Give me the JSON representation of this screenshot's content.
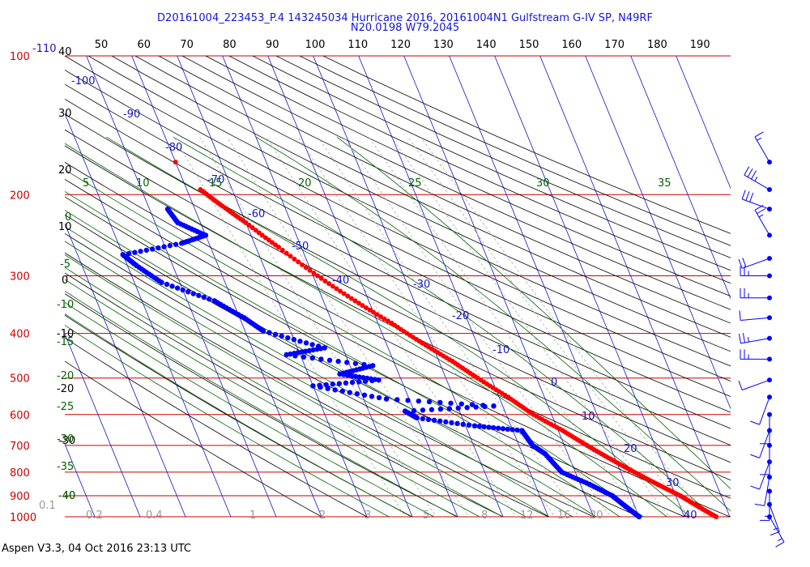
{
  "header": {
    "line1": "D20161004_223453_P.4 143245034 Hurricane 2016, 20161004N1 Gulfstream G-IV SP, N49RF",
    "line2": "N20.0198 W79.2045"
  },
  "footer": {
    "text": "Aspen V3.3, 04 Oct 2016  23:13 UTC"
  },
  "colors": {
    "temperature": "#ff0000",
    "dewpoint": "#0000ff",
    "isobar": "#cc0000",
    "isotherm": "#1414c8",
    "dry_adiabat": "#000000",
    "moist_adiabat": "#006400",
    "mixing_ratio": "#a8a8a8",
    "wind": "#0000ff"
  },
  "chart_data": {
    "type": "skew-t",
    "pressure_levels": [
      100,
      200,
      300,
      400,
      500,
      600,
      700,
      800,
      900,
      1000
    ],
    "pressure_labels": [
      "100",
      "200",
      "300",
      "400",
      "500",
      "600",
      "700",
      "800",
      "900",
      "1000"
    ],
    "top_axis_labels": [
      "50",
      "60",
      "70",
      "80",
      "90",
      "100",
      "110",
      "120",
      "130",
      "140",
      "150",
      "160",
      "170",
      "180",
      "190"
    ],
    "isotherm_labels": [
      "-110",
      "-100",
      "-90",
      "-80",
      "-70",
      "-60",
      "-50",
      "-40",
      "-30",
      "-20",
      "-10",
      "0",
      "10",
      "20",
      "30",
      "40"
    ],
    "dry_adiabat_labels": [
      "40",
      "30",
      "20",
      "10",
      "0",
      "-10",
      "-20",
      "-30",
      "-40"
    ],
    "moist_adiabat_labels": [
      "5",
      "10",
      "15",
      "20",
      "25",
      "30",
      "35",
      "0",
      "-5",
      "-10",
      "-15",
      "-20",
      "-25",
      "-30",
      "-35",
      "-40"
    ],
    "mixing_ratio_labels": [
      "0.1",
      "0.2",
      "0.4",
      "1",
      "2",
      "3",
      "5",
      "8",
      "12",
      "16",
      "20"
    ],
    "temperature_profile": [
      {
        "p": 195,
        "t": -57
      },
      {
        "p": 210,
        "t": -54
      },
      {
        "p": 230,
        "t": -50
      },
      {
        "p": 260,
        "t": -45
      },
      {
        "p": 300,
        "t": -39
      },
      {
        "p": 340,
        "t": -33
      },
      {
        "p": 380,
        "t": -27
      },
      {
        "p": 420,
        "t": -22
      },
      {
        "p": 460,
        "t": -17
      },
      {
        "p": 500,
        "t": -13
      },
      {
        "p": 550,
        "t": -8
      },
      {
        "p": 600,
        "t": -4
      },
      {
        "p": 650,
        "t": 1
      },
      {
        "p": 700,
        "t": 5
      },
      {
        "p": 750,
        "t": 9
      },
      {
        "p": 800,
        "t": 13
      },
      {
        "p": 850,
        "t": 17
      },
      {
        "p": 900,
        "t": 21
      },
      {
        "p": 950,
        "t": 24
      },
      {
        "p": 1000,
        "t": 27
      }
    ],
    "temperature_isolated_point": {
      "p": 170,
      "t": -60
    },
    "dewpoint_profile": [
      {
        "p": 215,
        "t": -66
      },
      {
        "p": 230,
        "t": -65
      },
      {
        "p": 245,
        "t": -60
      },
      {
        "p": 255,
        "t": -66
      },
      {
        "p": 270,
        "t": -80
      },
      {
        "p": 285,
        "t": -78
      },
      {
        "p": 310,
        "t": -74
      },
      {
        "p": 340,
        "t": -64
      },
      {
        "p": 370,
        "t": -59
      },
      {
        "p": 395,
        "t": -56
      },
      {
        "p": 430,
        "t": -44
      },
      {
        "p": 445,
        "t": -53
      },
      {
        "p": 470,
        "t": -35
      },
      {
        "p": 490,
        "t": -43
      },
      {
        "p": 505,
        "t": -35
      },
      {
        "p": 520,
        "t": -50
      },
      {
        "p": 555,
        "t": -35
      },
      {
        "p": 575,
        "t": -12
      },
      {
        "p": 590,
        "t": -32
      },
      {
        "p": 610,
        "t": -30
      },
      {
        "p": 635,
        "t": -18
      },
      {
        "p": 650,
        "t": -8
      },
      {
        "p": 700,
        "t": -7
      },
      {
        "p": 730,
        "t": -5
      },
      {
        "p": 800,
        "t": -3
      },
      {
        "p": 850,
        "t": 2
      },
      {
        "p": 900,
        "t": 6
      },
      {
        "p": 950,
        "t": 8
      },
      {
        "p": 1000,
        "t": 10
      }
    ],
    "wind_profile": [
      {
        "p": 170,
        "dir": 330,
        "spd": 5
      },
      {
        "p": 195,
        "dir": 300,
        "spd": 25
      },
      {
        "p": 215,
        "dir": 290,
        "spd": 30
      },
      {
        "p": 245,
        "dir": 330,
        "spd": 15
      },
      {
        "p": 275,
        "dir": 250,
        "spd": 20
      },
      {
        "p": 300,
        "dir": 270,
        "spd": 15
      },
      {
        "p": 335,
        "dir": 270,
        "spd": 15
      },
      {
        "p": 370,
        "dir": 265,
        "spd": 10
      },
      {
        "p": 410,
        "dir": 260,
        "spd": 15
      },
      {
        "p": 455,
        "dir": 270,
        "spd": 15
      },
      {
        "p": 505,
        "dir": 250,
        "spd": 10
      },
      {
        "p": 550,
        "dir": 200,
        "spd": 10
      },
      {
        "p": 600,
        "dir": 180,
        "spd": 10
      },
      {
        "p": 650,
        "dir": 200,
        "spd": 10
      },
      {
        "p": 700,
        "dir": 180,
        "spd": 10
      },
      {
        "p": 760,
        "dir": 200,
        "spd": 10
      },
      {
        "p": 820,
        "dir": 190,
        "spd": 10
      },
      {
        "p": 880,
        "dir": 180,
        "spd": 5
      },
      {
        "p": 940,
        "dir": 160,
        "spd": 5
      },
      {
        "p": 1000,
        "dir": 150,
        "spd": 5
      }
    ],
    "grid": true,
    "legend": "none"
  }
}
